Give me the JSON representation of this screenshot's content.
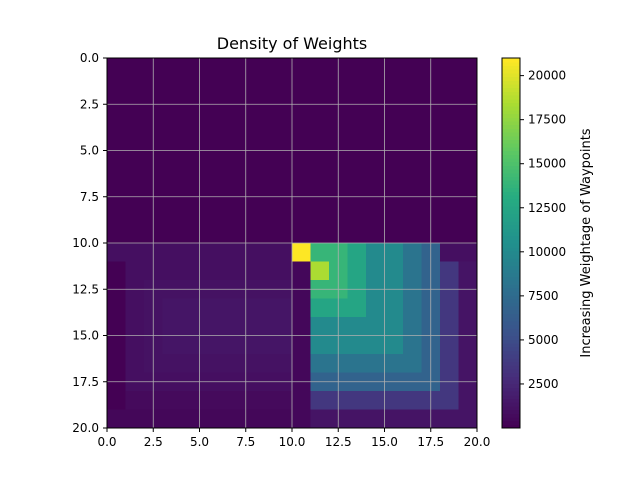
{
  "chart_data": {
    "type": "heatmap",
    "title": "Density of Weights",
    "xlabel": "",
    "ylabel": "",
    "xlim": [
      0,
      20
    ],
    "ylim": [
      20,
      0
    ],
    "x_ticks": [
      "0.0",
      "2.5",
      "5.0",
      "7.5",
      "10.0",
      "12.5",
      "15.0",
      "17.5",
      "20.0"
    ],
    "y_ticks": [
      "0.0",
      "2.5",
      "5.0",
      "7.5",
      "10.0",
      "12.5",
      "15.0",
      "17.5",
      "20.0"
    ],
    "grid": true,
    "colormap": "viridis",
    "colorbar": {
      "label": "Increasing Weightage of Waypoints",
      "range": [
        0,
        21000
      ],
      "ticks": [
        "2500",
        "5000",
        "7500",
        "10000",
        "12500",
        "15000",
        "17500",
        "20000"
      ]
    },
    "background_value": 0,
    "regions": [
      {
        "x": [
          0,
          20
        ],
        "y": [
          10,
          11
        ],
        "value": 900
      },
      {
        "x": [
          0,
          11
        ],
        "y": [
          19,
          20
        ],
        "value": 350
      },
      {
        "x": [
          1,
          11
        ],
        "y": [
          18,
          19
        ],
        "value": 600
      },
      {
        "x": [
          1,
          11
        ],
        "y": [
          11,
          18
        ],
        "value": 900
      },
      {
        "x": [
          2,
          10
        ],
        "y": [
          12,
          17
        ],
        "value": 1100
      },
      {
        "x": [
          3,
          10
        ],
        "y": [
          13,
          16
        ],
        "value": 1300
      },
      {
        "x": [
          10,
          11
        ],
        "y": [
          11,
          20
        ],
        "value": 400
      },
      {
        "x": [
          11,
          20
        ],
        "y": [
          11,
          20
        ],
        "value": 1200
      },
      {
        "x": [
          11,
          19
        ],
        "y": [
          11,
          19
        ],
        "value": 3500
      },
      {
        "x": [
          11,
          18
        ],
        "y": [
          10,
          18
        ],
        "value": 6800
      },
      {
        "x": [
          11,
          17
        ],
        "y": [
          10,
          17
        ],
        "value": 8200
      },
      {
        "x": [
          11,
          16
        ],
        "y": [
          10,
          16
        ],
        "value": 10000
      },
      {
        "x": [
          11,
          14
        ],
        "y": [
          10,
          14
        ],
        "value": 12500
      },
      {
        "x": [
          11,
          13
        ],
        "y": [
          10,
          13
        ],
        "value": 14000
      },
      {
        "x": [
          11,
          12
        ],
        "y": [
          11,
          12
        ],
        "value": 18500
      },
      {
        "x": [
          11,
          12
        ],
        "y": [
          10,
          11
        ],
        "value": 14000
      },
      {
        "x": [
          10,
          11
        ],
        "y": [
          10,
          11
        ],
        "value": 21000
      }
    ]
  }
}
